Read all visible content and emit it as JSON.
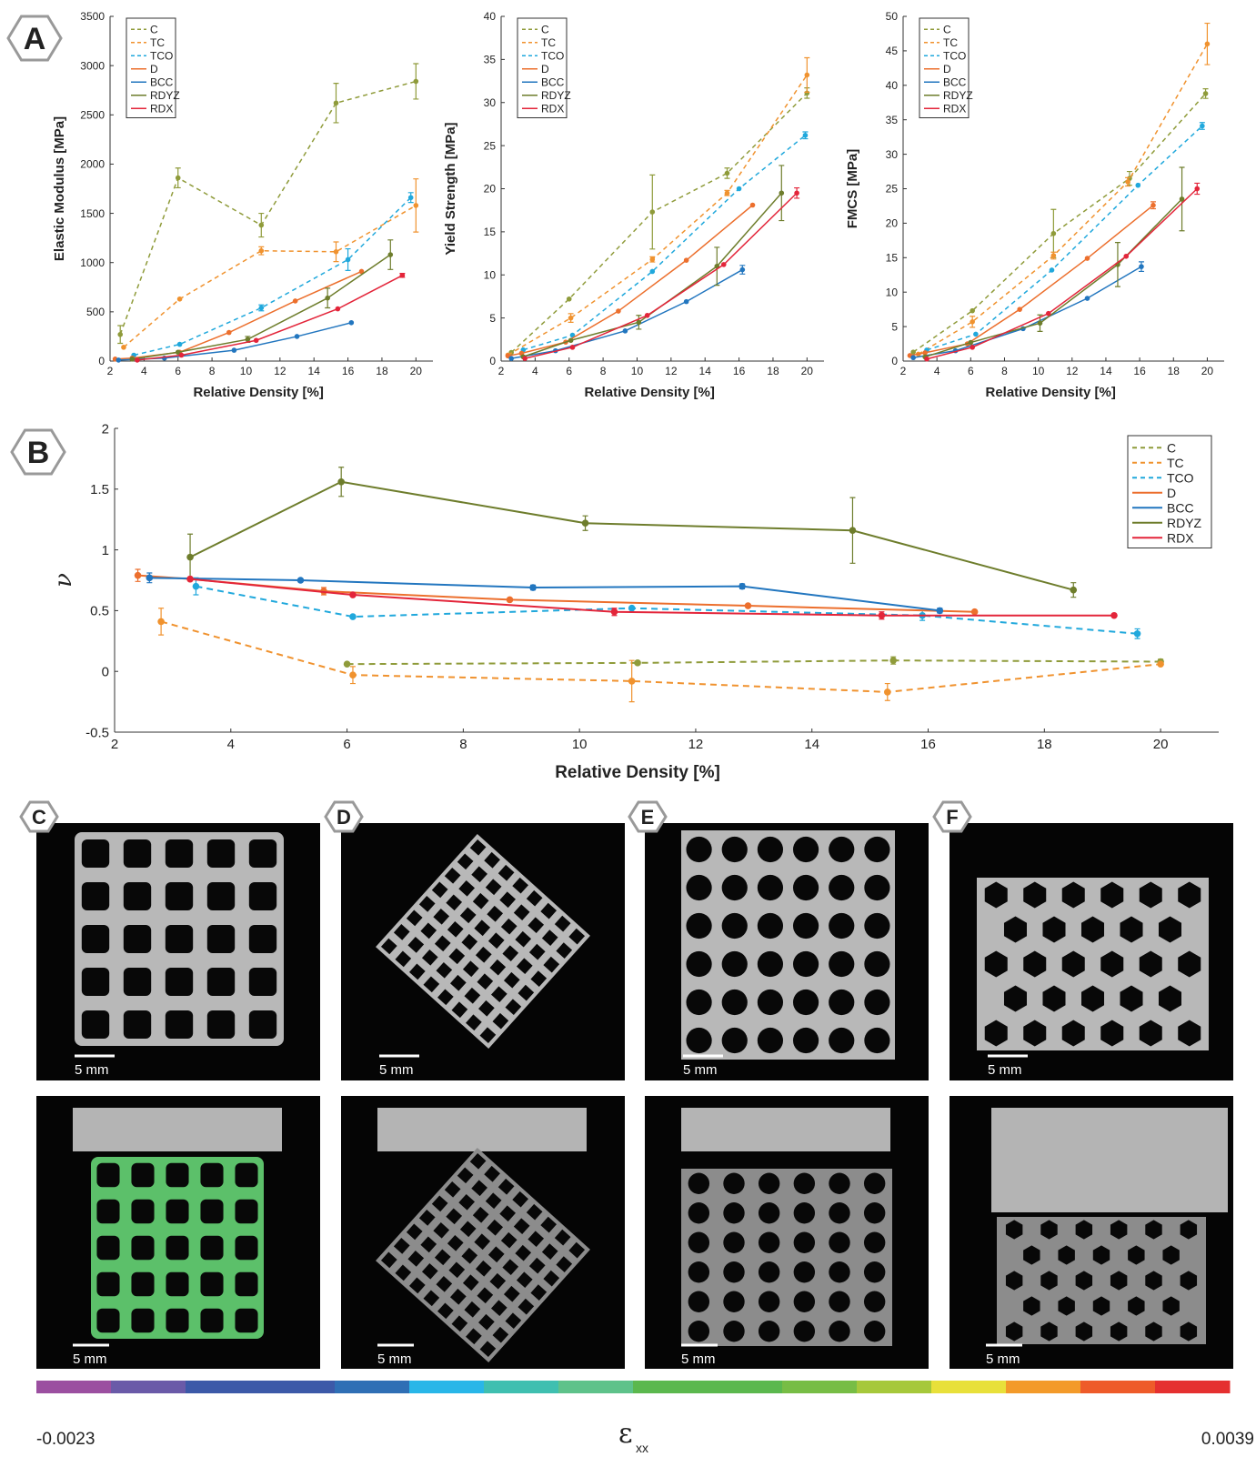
{
  "chart_data": [
    {
      "type": "line",
      "xlabel": "Relative Density [%]",
      "ylabel": "Elastic Modulus [MPa]",
      "xlim": [
        2,
        21
      ],
      "ylim": [
        0,
        3500
      ],
      "xticks": [
        2,
        4,
        6,
        8,
        10,
        12,
        14,
        16,
        18,
        20
      ],
      "yticks": [
        0,
        500,
        1000,
        1500,
        2000,
        2500,
        3000,
        3500
      ],
      "legend": "top-left",
      "series": [
        {
          "name": "C",
          "color": "#8f9b3a",
          "line_style": "dashed",
          "x": [
            2.6,
            6,
            10.9,
            15.3,
            20
          ],
          "values": [
            270,
            1860,
            1380,
            2620,
            2840
          ],
          "errors": [
            90,
            100,
            120,
            200,
            180
          ]
        },
        {
          "name": "TC",
          "color": "#f0922e",
          "line_style": "dashed",
          "x": [
            2.8,
            6.1,
            10.9,
            15.3,
            20
          ],
          "values": [
            140,
            630,
            1120,
            1110,
            1580
          ],
          "errors": [
            null,
            null,
            40,
            100,
            270
          ]
        },
        {
          "name": "TCO",
          "color": "#20a8dc",
          "line_style": "dashed",
          "x": [
            3.4,
            6.1,
            10.9,
            16,
            19.7
          ],
          "values": [
            60,
            170,
            540,
            1030,
            1660
          ],
          "errors": [
            null,
            null,
            30,
            110,
            50
          ]
        },
        {
          "name": "D",
          "color": "#ec6f2d",
          "line_style": "solid",
          "x": [
            2.3,
            3.3,
            6.1,
            9,
            12.9,
            16.8
          ],
          "values": [
            20,
            30,
            90,
            290,
            610,
            910
          ],
          "errors": [
            null,
            null,
            null,
            null,
            null,
            null
          ]
        },
        {
          "name": "BCC",
          "color": "#2276bf",
          "line_style": "solid",
          "x": [
            2.5,
            5.2,
            9.3,
            13,
            16.2
          ],
          "values": [
            10,
            30,
            110,
            250,
            390
          ],
          "errors": [
            null,
            null,
            null,
            null,
            null
          ]
        },
        {
          "name": "RDYZ",
          "color": "#6e7d2c",
          "line_style": "solid",
          "x": [
            3.3,
            6,
            10.1,
            14.8,
            18.5
          ],
          "values": [
            20,
            90,
            220,
            640,
            1080
          ],
          "errors": [
            null,
            null,
            30,
            100,
            150
          ]
        },
        {
          "name": "RDX",
          "color": "#e3253a",
          "line_style": "solid",
          "x": [
            3.6,
            6.2,
            10.6,
            15.4,
            19.2
          ],
          "values": [
            10,
            60,
            210,
            530,
            870
          ],
          "errors": [
            null,
            null,
            null,
            null,
            20
          ]
        }
      ]
    },
    {
      "type": "line",
      "xlabel": "Relative Density [%]",
      "ylabel": "Yield Strength [MPa]",
      "xlim": [
        2,
        21
      ],
      "ylim": [
        0,
        40
      ],
      "xticks": [
        2,
        4,
        6,
        8,
        10,
        12,
        14,
        16,
        18,
        20
      ],
      "yticks": [
        0,
        5,
        10,
        15,
        20,
        25,
        30,
        35,
        40
      ],
      "legend": "top-left",
      "series": [
        {
          "name": "C",
          "color": "#8f9b3a",
          "line_style": "dashed",
          "x": [
            2.6,
            6,
            10.9,
            15.3,
            20
          ],
          "values": [
            1,
            7.2,
            17.3,
            21.8,
            31.1
          ],
          "errors": [
            null,
            null,
            4.3,
            0.6,
            0.6
          ]
        },
        {
          "name": "TC",
          "color": "#f0922e",
          "line_style": "dashed",
          "x": [
            2.4,
            6.1,
            10.9,
            15.3,
            20
          ],
          "values": [
            0.7,
            5,
            11.8,
            19.5,
            33.2
          ],
          "errors": [
            null,
            0.5,
            0.3,
            0.3,
            2
          ]
        },
        {
          "name": "TCO",
          "color": "#20a8dc",
          "line_style": "dashed",
          "x": [
            3.3,
            6.2,
            10.9,
            16,
            19.9
          ],
          "values": [
            1.3,
            3,
            10.4,
            20,
            26.2
          ],
          "errors": [
            null,
            null,
            null,
            null,
            0.4
          ]
        },
        {
          "name": "D",
          "color": "#ec6f2d",
          "line_style": "solid",
          "x": [
            2.4,
            3.2,
            5.8,
            8.9,
            12.9,
            16.8
          ],
          "values": [
            0.6,
            0.9,
            2.2,
            5.8,
            11.7,
            18.1
          ],
          "errors": [
            null,
            null,
            null,
            null,
            null,
            null
          ]
        },
        {
          "name": "BCC",
          "color": "#2276bf",
          "line_style": "solid",
          "x": [
            2.6,
            5.2,
            9.3,
            12.9,
            16.2
          ],
          "values": [
            0.3,
            1.2,
            3.5,
            6.9,
            10.6
          ],
          "errors": [
            null,
            null,
            null,
            null,
            0.5
          ]
        },
        {
          "name": "RDYZ",
          "color": "#6e7d2c",
          "line_style": "solid",
          "x": [
            3.3,
            6.1,
            10.1,
            14.7,
            18.5
          ],
          "values": [
            0.5,
            2.4,
            4.5,
            11,
            19.5
          ],
          "errors": [
            null,
            null,
            0.8,
            2.2,
            3.2
          ]
        },
        {
          "name": "RDX",
          "color": "#e3253a",
          "line_style": "solid",
          "x": [
            3.4,
            6.2,
            10.6,
            15.1,
            19.4
          ],
          "values": [
            0.3,
            1.6,
            5.3,
            11.2,
            19.5
          ],
          "errors": [
            null,
            null,
            null,
            null,
            0.6
          ]
        }
      ]
    },
    {
      "type": "line",
      "xlabel": "Relative Density [%]",
      "ylabel": "FMCS [MPa]",
      "xlim": [
        2,
        21
      ],
      "ylim": [
        0,
        50
      ],
      "xticks": [
        2,
        4,
        6,
        8,
        10,
        12,
        14,
        16,
        18,
        20
      ],
      "yticks": [
        0,
        5,
        10,
        15,
        20,
        25,
        30,
        35,
        40,
        45,
        50
      ],
      "legend": "top-left",
      "series": [
        {
          "name": "C",
          "color": "#8f9b3a",
          "line_style": "dashed",
          "x": [
            2.6,
            6.1,
            10.9,
            15.4,
            19.9
          ],
          "values": [
            1.3,
            7.3,
            18.5,
            26.5,
            38.8
          ],
          "errors": [
            null,
            null,
            3.5,
            1,
            0.7
          ]
        },
        {
          "name": "TC",
          "color": "#f0922e",
          "line_style": "dashed",
          "x": [
            2.9,
            6.1,
            10.9,
            15.3,
            20
          ],
          "values": [
            1,
            5.7,
            15.3,
            26,
            46
          ],
          "errors": [
            null,
            0.8,
            0.5,
            0.6,
            3
          ]
        },
        {
          "name": "TCO",
          "color": "#20a8dc",
          "line_style": "dashed",
          "x": [
            3.4,
            6.3,
            10.8,
            15.9,
            19.7
          ],
          "values": [
            1.6,
            3.9,
            13.2,
            25.5,
            34.1
          ],
          "errors": [
            null,
            null,
            null,
            null,
            0.5
          ]
        },
        {
          "name": "D",
          "color": "#ec6f2d",
          "line_style": "solid",
          "x": [
            2.4,
            3.3,
            5.8,
            8.9,
            12.9,
            16.8
          ],
          "values": [
            0.8,
            1.2,
            2.5,
            7.5,
            14.9,
            22.6
          ],
          "errors": [
            null,
            null,
            null,
            null,
            null,
            0.5
          ]
        },
        {
          "name": "BCC",
          "color": "#2276bf",
          "line_style": "solid",
          "x": [
            2.6,
            5.1,
            9.1,
            12.9,
            16.1
          ],
          "values": [
            0.5,
            1.5,
            4.7,
            9.1,
            13.7
          ],
          "errors": [
            null,
            null,
            null,
            null,
            0.7
          ]
        },
        {
          "name": "RDYZ",
          "color": "#6e7d2c",
          "line_style": "solid",
          "x": [
            3.3,
            6,
            10.1,
            14.7,
            18.5
          ],
          "values": [
            0.6,
            2.7,
            5.5,
            14,
            23.5
          ],
          "errors": [
            null,
            null,
            1.2,
            3.2,
            4.6
          ]
        },
        {
          "name": "RDX",
          "color": "#e3253a",
          "line_style": "solid",
          "x": [
            3.4,
            6.1,
            10.6,
            15.2,
            19.4
          ],
          "values": [
            0.3,
            2,
            6.9,
            15.2,
            25
          ],
          "errors": [
            null,
            null,
            null,
            null,
            0.8
          ]
        }
      ]
    },
    {
      "type": "line",
      "xlabel": "Relative Density [%]",
      "ylabel": "ν",
      "xlim": [
        2,
        21
      ],
      "ylim": [
        -0.5,
        2
      ],
      "xticks": [
        2,
        4,
        6,
        8,
        10,
        12,
        14,
        16,
        18,
        20
      ],
      "yticks": [
        -0.5,
        0,
        0.5,
        1,
        1.5,
        2
      ],
      "legend": "top-right",
      "series": [
        {
          "name": "C",
          "color": "#8f9b3a",
          "line_style": "dashed",
          "x": [
            6,
            11,
            15.4,
            20
          ],
          "values": [
            0.06,
            0.07,
            0.09,
            0.08
          ],
          "errors": [
            null,
            null,
            0.03,
            0.02
          ]
        },
        {
          "name": "TC",
          "color": "#f0922e",
          "line_style": "dashed",
          "x": [
            2.8,
            6.1,
            10.9,
            15.3,
            20
          ],
          "values": [
            0.41,
            -0.03,
            -0.08,
            -0.17,
            0.06
          ],
          "errors": [
            0.11,
            0.07,
            0.17,
            0.07,
            null
          ]
        },
        {
          "name": "TCO",
          "color": "#20a8dc",
          "line_style": "dashed",
          "x": [
            3.4,
            6.1,
            10.9,
            15.9,
            19.6
          ],
          "values": [
            0.7,
            0.45,
            0.52,
            0.46,
            0.31
          ],
          "errors": [
            0.07,
            null,
            null,
            0.04,
            0.04
          ]
        },
        {
          "name": "D",
          "color": "#ec6f2d",
          "line_style": "solid",
          "x": [
            2.4,
            3.3,
            5.6,
            8.8,
            12.9,
            16.8
          ],
          "values": [
            0.79,
            0.76,
            0.66,
            0.59,
            0.54,
            0.49
          ],
          "errors": [
            0.05,
            null,
            0.03,
            null,
            null,
            null
          ]
        },
        {
          "name": "BCC",
          "color": "#2276bf",
          "line_style": "solid",
          "x": [
            2.6,
            5.2,
            9.2,
            12.8,
            16.2
          ],
          "values": [
            0.77,
            0.75,
            0.69,
            0.7,
            0.5
          ],
          "errors": [
            0.04,
            null,
            0.02,
            0.02,
            0.02
          ]
        },
        {
          "name": "RDYZ",
          "color": "#6e7d2c",
          "line_style": "solid",
          "x": [
            3.3,
            5.9,
            10.1,
            14.7,
            18.5
          ],
          "values": [
            0.94,
            1.56,
            1.22,
            1.16,
            0.67
          ],
          "errors": [
            0.19,
            0.12,
            0.06,
            0.27,
            0.06
          ]
        },
        {
          "name": "RDX",
          "color": "#e3253a",
          "line_style": "solid",
          "x": [
            3.3,
            6.1,
            10.6,
            15.2,
            19.2
          ],
          "values": [
            0.76,
            0.63,
            0.49,
            0.46,
            0.46
          ],
          "errors": [
            null,
            null,
            0.03,
            0.03,
            null
          ]
        }
      ]
    }
  ],
  "section_labels": [
    "A",
    "B"
  ],
  "panels": [
    {
      "label": "C",
      "scale_bar": "5 mm"
    },
    {
      "label": "D",
      "scale_bar": "5 mm"
    },
    {
      "label": "E",
      "scale_bar": "5 mm"
    },
    {
      "label": "F",
      "scale_bar": "5 mm"
    }
  ],
  "colorbar": {
    "range": [
      -0.0023,
      0.0039
    ],
    "label": "ε",
    "label_sub": "xx",
    "colors": [
      "#9b4fa0",
      "#6a5aa8",
      "#3c59a8",
      "#3c59a8",
      "#2f6fb5",
      "#29b6e8",
      "#3fbfb0",
      "#5ec28a",
      "#5bb84e",
      "#5bb84e",
      "#77bd45",
      "#a6c83b",
      "#e8e03a",
      "#f39a2a",
      "#ee5b2a",
      "#e53030"
    ]
  }
}
